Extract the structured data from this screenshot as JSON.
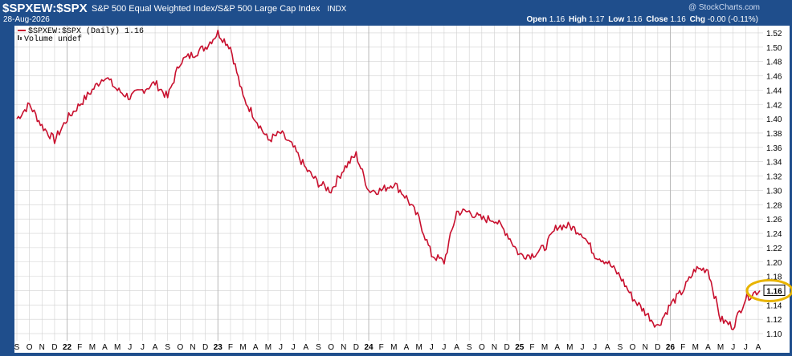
{
  "header": {
    "symbol": "$SPXEW:$SPX",
    "description": "S&P 500 Equal Weighted Index/S&P 500 Large Cap Index",
    "exchange": "INDX",
    "date": "28-Aug-2026",
    "watermark": "@ StockCharts.com",
    "quote": {
      "open_label": "Open",
      "open": "1.16",
      "high_label": "High",
      "high": "1.17",
      "low_label": "Low",
      "low": "1.16",
      "close_label": "Close",
      "close": "1.16",
      "chg_label": "Chg",
      "chg": "-0.00 (-0.11%)"
    }
  },
  "legend": {
    "series_label": "$SPXEW:$SPX (Daily) 1.16",
    "volume_label": "Volume undef"
  },
  "last_value_label": "1.16",
  "colors": {
    "line": "#c8102e",
    "frame": "#1f4e8c",
    "grid": "#d0d0d0",
    "highlight": "#e8b400"
  },
  "chart_data": {
    "type": "line",
    "grid": true,
    "ylim": [
      1.09,
      1.53
    ],
    "y_ticks": [
      "1.10",
      "1.12",
      "1.14",
      "1.16",
      "1.18",
      "1.20",
      "1.22",
      "1.24",
      "1.26",
      "1.28",
      "1.30",
      "1.32",
      "1.34",
      "1.36",
      "1.38",
      "1.40",
      "1.42",
      "1.44",
      "1.46",
      "1.48",
      "1.50",
      "1.52"
    ],
    "x_ticks": [
      "S",
      "O",
      "N",
      "D",
      "22",
      "F",
      "M",
      "A",
      "M",
      "J",
      "J",
      "A",
      "S",
      "O",
      "N",
      "D",
      "23",
      "F",
      "M",
      "A",
      "M",
      "J",
      "J",
      "A",
      "S",
      "O",
      "N",
      "D",
      "24",
      "F",
      "M",
      "A",
      "M",
      "J",
      "J",
      "A",
      "S",
      "O",
      "N",
      "D",
      "25",
      "F",
      "M",
      "A",
      "M",
      "J",
      "J",
      "A",
      "S",
      "O",
      "N",
      "D",
      "26",
      "F",
      "M",
      "A",
      "M",
      "J",
      "J",
      "A"
    ],
    "year_ticks": [
      "22",
      "23",
      "24",
      "25",
      "26"
    ],
    "series": [
      {
        "x": [
          "2021-09",
          "2021-10",
          "2021-11",
          "2021-12",
          "2022-01",
          "2022-02",
          "2022-03",
          "2022-04",
          "2022-05",
          "2022-06",
          "2022-07",
          "2022-08",
          "2022-09",
          "2022-10",
          "2022-11",
          "2022-12",
          "2023-01",
          "2023-02",
          "2023-03",
          "2023-04",
          "2023-05",
          "2023-06",
          "2023-07",
          "2023-08",
          "2023-09",
          "2023-10",
          "2023-11",
          "2023-12",
          "2024-01",
          "2024-02",
          "2024-03",
          "2024-04",
          "2024-05",
          "2024-06",
          "2024-07",
          "2024-08",
          "2024-09",
          "2024-10",
          "2024-11",
          "2024-12",
          "2025-01",
          "2025-02",
          "2025-03",
          "2025-04",
          "2025-05",
          "2025-06",
          "2025-07",
          "2025-08",
          "2025-09",
          "2025-10",
          "2025-11",
          "2025-12",
          "2026-01",
          "2026-02",
          "2026-03",
          "2026-04",
          "2026-05",
          "2026-06",
          "2026-07",
          "2026-08"
        ],
        "values": [
          1.4,
          1.42,
          1.39,
          1.37,
          1.4,
          1.42,
          1.44,
          1.46,
          1.44,
          1.43,
          1.44,
          1.45,
          1.43,
          1.48,
          1.49,
          1.5,
          1.52,
          1.5,
          1.43,
          1.4,
          1.37,
          1.38,
          1.36,
          1.33,
          1.31,
          1.3,
          1.33,
          1.35,
          1.3,
          1.3,
          1.31,
          1.29,
          1.26,
          1.21,
          1.2,
          1.27,
          1.27,
          1.26,
          1.26,
          1.24,
          1.21,
          1.21,
          1.22,
          1.25,
          1.25,
          1.24,
          1.21,
          1.2,
          1.18,
          1.15,
          1.13,
          1.11,
          1.14,
          1.16,
          1.19,
          1.19,
          1.12,
          1.11,
          1.15,
          1.16
        ]
      }
    ]
  }
}
